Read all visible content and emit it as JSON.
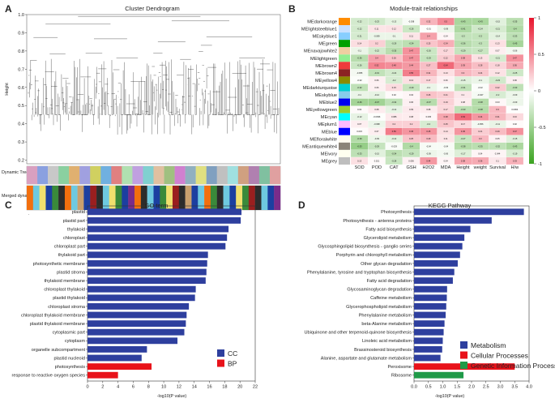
{
  "panels": {
    "a": {
      "label": "A",
      "title": "Cluster Dendrogram",
      "ylabel": "Height",
      "yticks": [
        "1.0",
        "0.9",
        "0.8",
        "0.7",
        "0.6",
        "0.5",
        "0.4",
        "0.3",
        "0.2"
      ],
      "row_labels": [
        "Dynamic Tree Cut",
        "Merged dynamic"
      ],
      "merged_colors": [
        "#f26f0e",
        "#6ec9e0",
        "#f1e06e",
        "#1c3fa0",
        "#3a8a3a",
        "#2c2c2c",
        "#f26f0e",
        "#6ec9e0",
        "#c9a06e",
        "#1c3fa0",
        "#9a1f1f",
        "#2c2c2c",
        "#6ec9e0",
        "#f1e06e",
        "#3a8a3a",
        "#1c3fa0",
        "#7a2c8a",
        "#f26f0e",
        "#2c2c2c",
        "#6ec9e0",
        "#1c3fa0",
        "#3a8a3a",
        "#f1e06e",
        "#9a1f1f",
        "#2c2c2c",
        "#c9a06e",
        "#1c3fa0",
        "#6ec9e0",
        "#f26f0e",
        "#3a8a3a",
        "#2c2c2c",
        "#6ec9e0",
        "#1c3fa0",
        "#f1e06e",
        "#3a8a3a",
        "#9a1f1f",
        "#2c2c2c",
        "#6ec9e0",
        "#1c3fa0",
        "#7a2c8a"
      ],
      "dynamic_colors": [
        "#d9a0c0",
        "#8aa0e0",
        "#c8c8c8",
        "#8ad0a0",
        "#e0b070",
        "#a0a0e0",
        "#d0d060",
        "#70b0e0",
        "#e08080",
        "#b0e0b0",
        "#c0a0e0",
        "#80d0d0",
        "#e0c0a0",
        "#a0c080",
        "#d080d0",
        "#90b0c0",
        "#e0e080",
        "#80a0c0",
        "#c0c0c0",
        "#a0e0e0",
        "#d0a080",
        "#b080b0",
        "#80c0a0",
        "#e0a0a0"
      ]
    },
    "b": {
      "label": "B",
      "title": "Module-trait relationships",
      "colorbar_ticks": [
        "1",
        "0.5",
        "0",
        "-0.5",
        "-1"
      ]
    },
    "c": {
      "label": "C",
      "title": "GO term",
      "xlabel": "-log10(P value)",
      "dot": "."
    },
    "d": {
      "label": "D",
      "title": "KEGG Pathway",
      "xlabel": "-log10(P value)"
    }
  },
  "chart_data": [
    {
      "id": "a",
      "type": "dendrogram",
      "title": "Cluster Dendrogram",
      "ylabel": "Height",
      "ylim": [
        0.18,
        1.0
      ],
      "yticks": [
        1.0,
        0.9,
        0.8,
        0.7,
        0.6,
        0.5,
        0.4,
        0.3,
        0.2
      ]
    },
    {
      "id": "b",
      "type": "heatmap",
      "title": "Module-trait relationships",
      "columns": [
        "SOD",
        "POD",
        "CAT",
        "GSH",
        "H2O2",
        "MDA",
        "Height",
        "weight",
        "Survival",
        "H/w"
      ],
      "rows": [
        "MEdarkorange",
        "MElightsteelblue1",
        "MEskyblue1",
        "MEgreen",
        "MEnavajowhite2",
        "MElightgreen",
        "MEbrown2",
        "MEbrown4",
        "MEyellow4",
        "MEdarkturquoise",
        "MEskyblue",
        "MEblue2",
        "MEyellowgreen",
        "MEcyan",
        "MEplum1",
        "MEblue",
        "MEfloralwhite",
        "MEantiquewhite4",
        "MEivory",
        "MEgrey"
      ],
      "module_colors": [
        "#ff8c00",
        "#cae1ff",
        "#87ceff",
        "#00a000",
        "#eecfa1",
        "#90ee90",
        "#ee3b3b",
        "#8b2323",
        "#8b8b00",
        "#00ced1",
        "#87ceeb",
        "#0000ee",
        "#9acd32",
        "#00ffff",
        "#ffbbff",
        "#0000ff",
        "#fffaf0",
        "#8b8378",
        "#fffff0",
        "#bebebe"
      ],
      "values": [
        [
          -0.22,
          -0.23,
          -0.13,
          -0.038,
          0.32,
          0.5,
          -0.43,
          -0.43,
          -0.15,
          -0.35
        ],
        [
          -0.22,
          0.11,
          0.12,
          -0.26,
          -0.01,
          -0.09,
          -0.41,
          -0.24,
          -0.21,
          -0.4
        ],
        [
          -0.21,
          -0.099,
          -0.1,
          0.11,
          0.4,
          0.04,
          -0.3,
          -0.3,
          -0.14,
          -0.33
        ],
        [
          0.14,
          0.2,
          -0.29,
          -0.34,
          0.25,
          0.34,
          -0.36,
          -0.3,
          0.13,
          -0.45
        ],
        [
          -0.1,
          -0.22,
          -0.35,
          0.47,
          -0.26,
          0.17,
          -0.29,
          -0.27,
          0.07,
          -0.06
        ],
        [
          -0.36,
          0.4,
          0.26,
          0.47,
          -0.29,
          0.22,
          0.38,
          0.13,
          -0.21,
          0.47
        ],
        [
          -0.26,
          0.52,
          0.48,
          0.44,
          0.27,
          0.64,
          0.39,
          0.28,
          0.18,
          0.36
        ],
        [
          -0.055,
          -0.31,
          -0.22,
          0.55,
          0.31,
          0.13,
          0.3,
          0.24,
          0.12,
          -0.25
        ],
        [
          -0.02,
          0.06,
          -0.2,
          0.13,
          0.17,
          0.06,
          -0.15,
          -0.1,
          -0.23,
          0.06
        ],
        [
          -0.32,
          0.06,
          0.15,
          -0.29,
          -0.1,
          -0.03,
          -0.31,
          -0.02,
          0.22,
          -0.33
        ],
        [
          -0.1,
          -0.12,
          0.02,
          0.04,
          0.26,
          0.21,
          0.1,
          -0.047,
          -0.2,
          -0.09
        ],
        [
          -0.46,
          -0.47,
          -0.32,
          0.06,
          -0.37,
          0.19,
          0.08,
          -0.38,
          0.03,
          -0.09
        ],
        [
          0.02,
          0.08,
          -0.12,
          0.09,
          0.08,
          0.17,
          -0.33,
          -0.38,
          0.3,
          0.0064
        ],
        [
          -0.12,
          -0.0096,
          0.086,
          0.08,
          0.035,
          0.38,
          0.63,
          0.44,
          0.31,
          0.16
        ],
        [
          0.07,
          -0.098,
          0.2,
          0.2,
          -0.2,
          0.25,
          0.17,
          -0.056,
          -0.11,
          0.02
        ],
        [
          0.015,
          0.07,
          0.56,
          0.45,
          0.45,
          0.14,
          0.45,
          0.21,
          0.29,
          0.47
        ],
        [
          -0.39,
          -0.09,
          -0.14,
          0.25,
          0.29,
          0.11,
          -0.27,
          0.3,
          0.05,
          -0.15
        ],
        [
          -0.53,
          -0.29,
          -0.029,
          -0.4,
          -0.04,
          -0.04,
          -0.38,
          -0.35,
          -0.32,
          -0.43
        ],
        [
          -0.33,
          -0.15,
          -0.34,
          -0.29,
          -0.09,
          -0.06,
          -0.17,
          0.04,
          0.044,
          -0.19
        ],
        [
          0.13,
          0.021,
          -0.28,
          0.056,
          0.44,
          0.04,
          0.38,
          0.36,
          0.1,
          0.33
        ]
      ],
      "colorbar_range": [
        -1,
        1
      ]
    },
    {
      "id": "c",
      "type": "bar",
      "orientation": "horizontal",
      "title": "GO term",
      "xlabel": "-log10(P value)",
      "xlim": [
        0,
        22
      ],
      "xticks": [
        0,
        2,
        4,
        6,
        8,
        10,
        12,
        14,
        16,
        18,
        20,
        22
      ],
      "categories": [
        "plastid",
        "plastid part",
        "thylakoid",
        "chloroplast",
        "chloroplast part",
        "thylakoid part",
        "photosynthetic membrane",
        "plastid stroma",
        "thylakoid membrane",
        "chloroplast thylakoid",
        "plastid thylakoid",
        "chloroplast stroma",
        "chloroplast thylakoid membrane",
        "plastid thylakoid membrane",
        "cytoplasmic part",
        "cytoplasm",
        "organelle subcompartment",
        "plastid nucleoid",
        "photosynthesis",
        "response to reactive oxygen species"
      ],
      "values": [
        20.2,
        20.1,
        18.5,
        18.3,
        18.1,
        15.8,
        15.7,
        15.6,
        15.5,
        14.2,
        14.1,
        13.3,
        13.0,
        12.9,
        12.7,
        11.8,
        7.8,
        7.1,
        8.4,
        4.0
      ],
      "groups": [
        "CC",
        "CC",
        "CC",
        "CC",
        "CC",
        "CC",
        "CC",
        "CC",
        "CC",
        "CC",
        "CC",
        "CC",
        "CC",
        "CC",
        "CC",
        "CC",
        "CC",
        "CC",
        "BP",
        "BP"
      ],
      "legend": [
        {
          "name": "CC",
          "color": "#2e3f9e"
        },
        {
          "name": "BP",
          "color": "#e8121a"
        }
      ]
    },
    {
      "id": "d",
      "type": "bar",
      "orientation": "horizontal",
      "title": "KEGG Pathway",
      "xlabel": "-log10(P value)",
      "xlim": [
        0,
        4.0
      ],
      "xticks": [
        0.0,
        0.5,
        1.0,
        1.5,
        2.0,
        2.5,
        3.0,
        3.5,
        4.0
      ],
      "categories": [
        "Photosynthesis",
        "Photosynthesis - antenna proteins",
        "Fatty acid biosynthesis",
        "Glycerolipid metabolism",
        "Glycosphingolipid biosynthesis - ganglio series",
        "Porphyrin and chlorophyll metabolism",
        "Other glycan degradation",
        "Phenylalanine, tyrosine and tryptophan biosynthesis",
        "Fatty acid degradation",
        "Glycosaminoglycan degradation",
        "Caffeine metabolism",
        "Glycerophospholipid metabolism",
        "Phenylalanine metabolism",
        "beta-Alanine metabolism",
        "Ubiquinone and other terpenoid-quinone biosynthesis",
        "Linoleic acid metabolism",
        "Brassinosteroid biosynthesis",
        "Alanine, aspartate and glutamate metabolism",
        "Peroxisome",
        "Ribosome"
      ],
      "values": [
        3.82,
        2.7,
        1.96,
        1.75,
        1.68,
        1.6,
        1.52,
        1.4,
        1.35,
        1.15,
        1.14,
        1.12,
        1.1,
        1.06,
        1.03,
        1.0,
        0.98,
        0.92,
        3.5,
        1.72
      ],
      "groups": [
        "Metabolism",
        "Metabolism",
        "Metabolism",
        "Metabolism",
        "Metabolism",
        "Metabolism",
        "Metabolism",
        "Metabolism",
        "Metabolism",
        "Metabolism",
        "Metabolism",
        "Metabolism",
        "Metabolism",
        "Metabolism",
        "Metabolism",
        "Metabolism",
        "Metabolism",
        "Metabolism",
        "Cellular Processes",
        "Genetic Information Processing"
      ],
      "legend": [
        {
          "name": "Metabolism",
          "color": "#2e3f9e"
        },
        {
          "name": "Cellular Processes",
          "color": "#e8121a"
        },
        {
          "name": "Genetic Information Processing",
          "color": "#1f9a48"
        }
      ]
    }
  ]
}
